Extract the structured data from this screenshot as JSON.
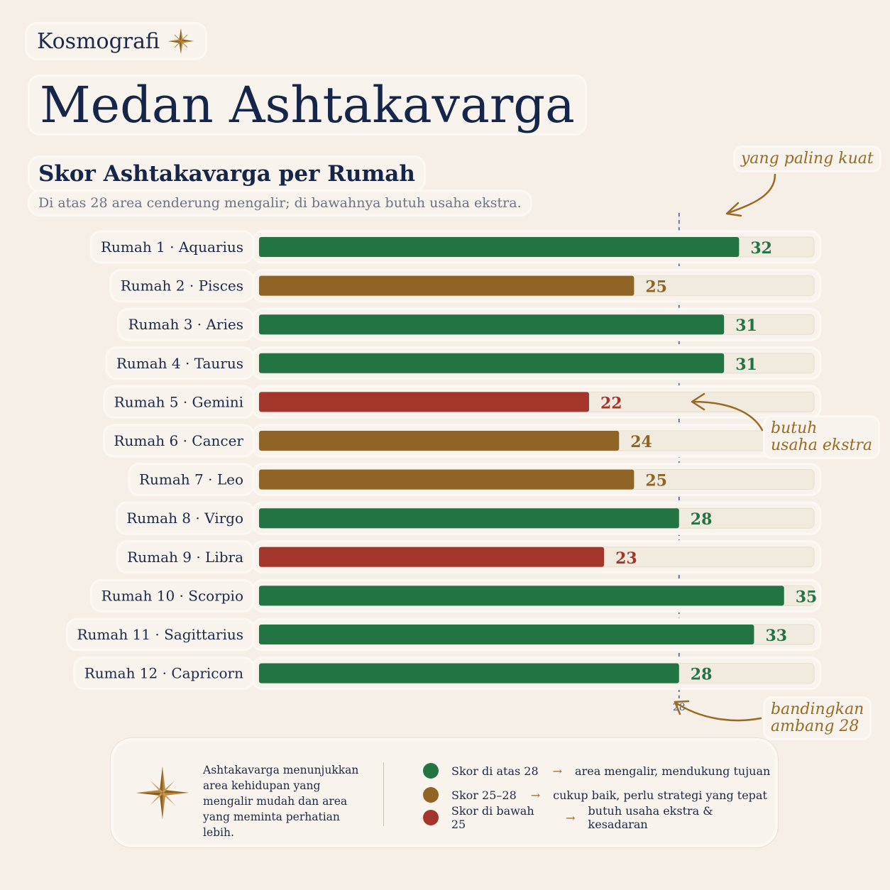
{
  "brand": {
    "name": "Kosmografi",
    "icon": "compass-star-icon"
  },
  "title": "Medan Ashtakavarga",
  "chart_data": {
    "type": "bar",
    "orientation": "horizontal",
    "title": "Skor Ashtakavarga per Rumah",
    "subtitle": "Di atas 28 area cenderung mengalir; di bawahnya butuh usaha ekstra.",
    "categories": [
      "Rumah 1 · Aquarius",
      "Rumah 2 · Pisces",
      "Rumah 3 · Aries",
      "Rumah 4 · Taurus",
      "Rumah 5 · Gemini",
      "Rumah 6 · Cancer",
      "Rumah 7 · Leo",
      "Rumah 8 · Virgo",
      "Rumah 9 · Libra",
      "Rumah 10 · Scorpio",
      "Rumah 11 · Sagittarius",
      "Rumah 12 · Capricorn"
    ],
    "values": [
      32,
      25,
      31,
      31,
      22,
      24,
      25,
      28,
      23,
      35,
      33,
      28
    ],
    "xlim": [
      0,
      37
    ],
    "threshold": {
      "value": 28,
      "label": "28"
    },
    "colors": {
      "high": "#237443",
      "mid": "#8f6424",
      "low": "#a3352b",
      "track": "#f1ebdf"
    },
    "annotations": [
      {
        "text": "yang paling kuat",
        "target": "Rumah 10 · Scorpio"
      },
      {
        "text": "butuh usaha ekstra",
        "target": "Rumah 5 · Gemini"
      },
      {
        "text": "bandingkan ambang 28",
        "target": "threshold"
      }
    ]
  },
  "annotations": {
    "strongest_1": "yang paling kuat",
    "effort_1": "butuh",
    "effort_2": "usaha ekstra",
    "compare_1": "bandingkan",
    "compare_2": "ambang 28"
  },
  "legend": {
    "note": "Ashtakavarga menunjukkan area kehidupan yang mengalir mudah dan area yang meminta perhatian lebih.",
    "items": [
      {
        "label": "Skor di atas 28",
        "arrow": "→",
        "meaning": "area mengalir, mendukung tujuan",
        "color": "#237443"
      },
      {
        "label": "Skor 25–28",
        "arrow": "→",
        "meaning": "cukup baik, perlu strategi yang tepat",
        "color": "#8f6424"
      },
      {
        "label": "Skor di bawah 25",
        "arrow": "→",
        "meaning": "butuh usaha ekstra & kesadaran",
        "color": "#a3352b"
      }
    ]
  }
}
